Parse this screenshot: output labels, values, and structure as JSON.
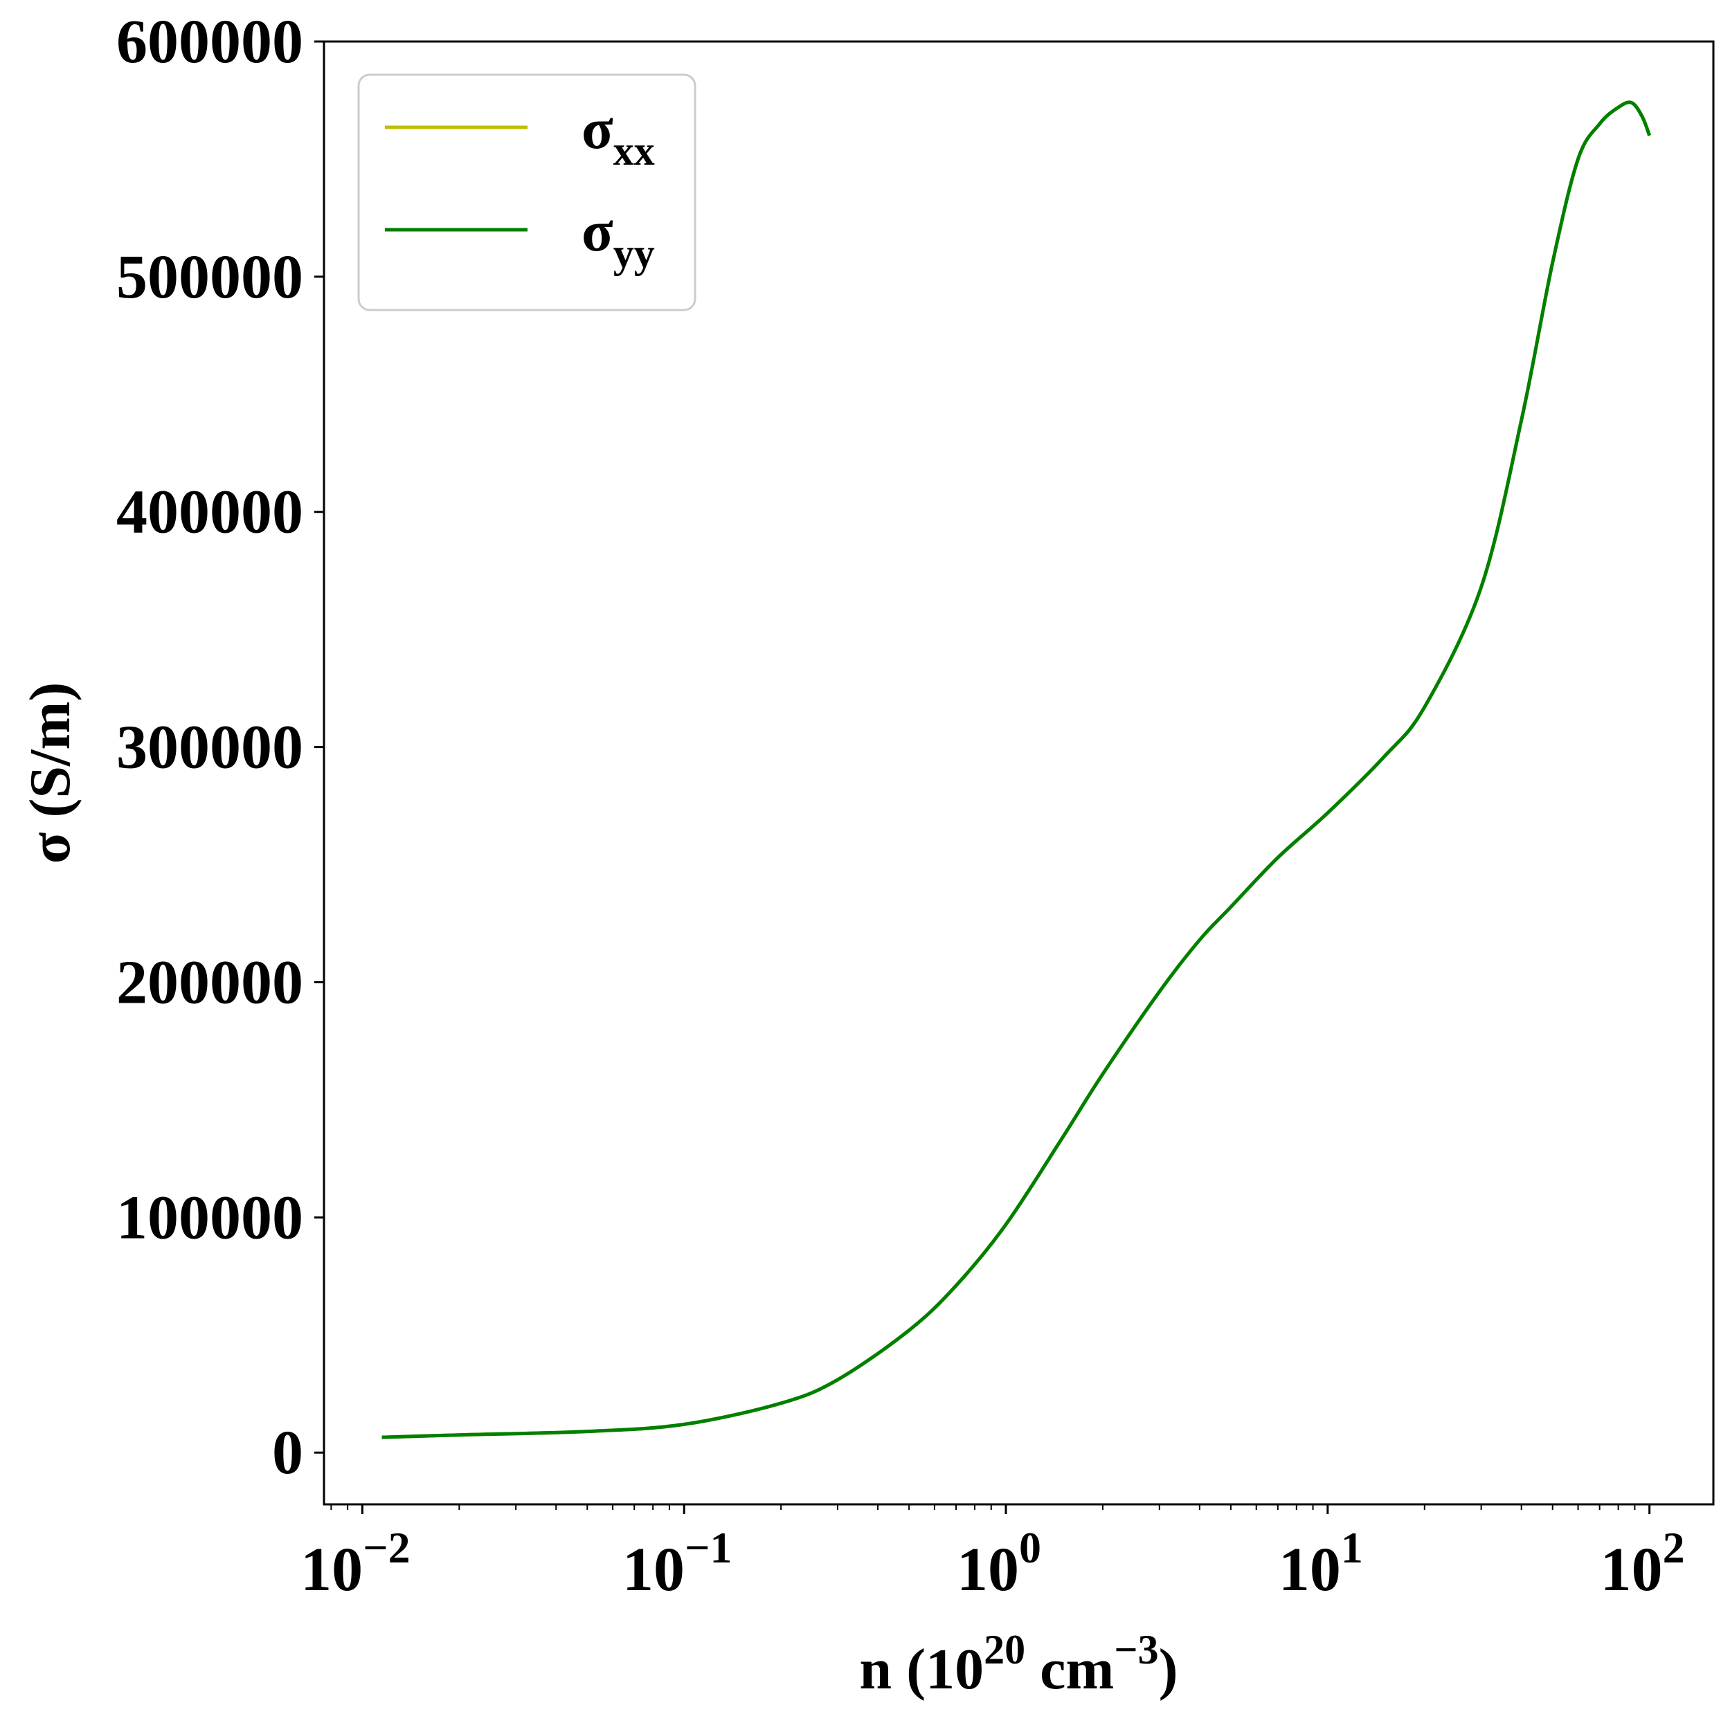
{
  "chart_data": {
    "type": "line",
    "title": "",
    "xlabel": {
      "base": "n (10",
      "sup1": "20",
      "mid": " cm",
      "sup2": "−3",
      "end": ")"
    },
    "ylabel": "σ (S/m)",
    "xscale": "log",
    "xlim": [
      0.0076,
      158
    ],
    "ylim": [
      -22000,
      600000
    ],
    "yticks": [
      0,
      100000,
      200000,
      300000,
      400000,
      500000,
      600000
    ],
    "ytick_labels": [
      "0",
      "100000",
      "200000",
      "300000",
      "400000",
      "500000",
      "600000"
    ],
    "xticks": [
      {
        "value": 0.01,
        "base": "10",
        "exp": "−2"
      },
      {
        "value": 0.1,
        "base": "10",
        "exp": "−1"
      },
      {
        "value": 1,
        "base": "10",
        "exp": "0"
      },
      {
        "value": 10,
        "base": "10",
        "exp": "1"
      },
      {
        "value": 100,
        "base": "10",
        "exp": "2"
      }
    ],
    "grid": false,
    "legend_position": "top-left",
    "series": [
      {
        "name": "σ",
        "subscript": "xx",
        "color": "#bfbf00",
        "x": [
          0.0115,
          0.02,
          0.05,
          0.1,
          0.2,
          0.3,
          0.5,
          0.7,
          1.0,
          1.5,
          2.0,
          3.0,
          4.0,
          5.0,
          7.0,
          10.0,
          15.0,
          20.0,
          30.0,
          40.0,
          50.0,
          60.0,
          70.0,
          80.0,
          88.0,
          95.0,
          100.0
        ],
        "y": [
          6500,
          7500,
          9000,
          12000,
          21000,
          31000,
          52000,
          71000,
          97000,
          134000,
          161000,
          196000,
          218000,
          232000,
          253000,
          272000,
          296000,
          317000,
          368000,
          439000,
          506000,
          550000,
          565000,
          572000,
          574000,
          568000,
          560000
        ]
      },
      {
        "name": "σ",
        "subscript": "yy",
        "color": "#008000",
        "x": [
          0.0115,
          0.02,
          0.05,
          0.1,
          0.2,
          0.3,
          0.5,
          0.7,
          1.0,
          1.5,
          2.0,
          3.0,
          4.0,
          5.0,
          7.0,
          10.0,
          15.0,
          20.0,
          30.0,
          40.0,
          50.0,
          60.0,
          70.0,
          80.0,
          88.0,
          95.0,
          100.0
        ],
        "y": [
          6500,
          7500,
          9000,
          12000,
          21000,
          31000,
          52000,
          71000,
          97000,
          134000,
          161000,
          196000,
          218000,
          232000,
          253000,
          272000,
          296000,
          317000,
          368000,
          439000,
          506000,
          550000,
          565000,
          572000,
          574000,
          568000,
          560000
        ]
      }
    ]
  }
}
